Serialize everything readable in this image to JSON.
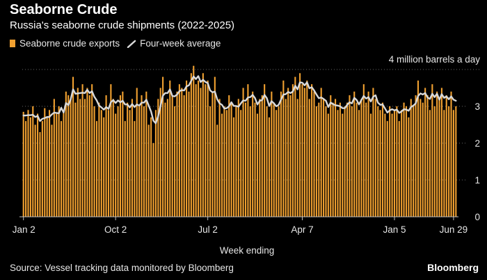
{
  "header": {
    "title": "Seaborne Crude",
    "subtitle": "Russia's seaborne crude shipments (2022-2025)"
  },
  "legend": {
    "bar_label": "Seaborne crude exports",
    "line_label": "Four-week average"
  },
  "footer": {
    "source": "Source: Vessel tracking data monitored by Bloomberg",
    "brand": "Bloomberg"
  },
  "colors": {
    "bar": "#f0a030",
    "bar_dark": "#a86a14",
    "line": "#d9d9d9",
    "grid": "#666666",
    "background": "#000000"
  },
  "chart_data": {
    "type": "bar",
    "title": "Seaborne Crude",
    "subtitle": "Russia's seaborne crude shipments (2022-2025)",
    "xlabel": "Week ending",
    "ylabel": "",
    "unit_label": "4 million barrels a day",
    "ylim": [
      0,
      4
    ],
    "yticks": [
      0,
      1,
      2,
      3
    ],
    "x_ticks": [
      {
        "label": "Jan 2",
        "index": 0
      },
      {
        "label": "Oct 2",
        "index": 39
      },
      {
        "label": "Jul 2",
        "index": 78
      },
      {
        "label": "Apr 7",
        "index": 118
      },
      {
        "label": "Jan 5",
        "index": 157
      },
      {
        "label": "Jun 29",
        "index": 182
      }
    ],
    "grid": true,
    "legend_position": "top-left",
    "series": [
      {
        "name": "Seaborne crude exports",
        "kind": "bar",
        "values": [
          2.85,
          2.6,
          2.9,
          2.7,
          3.0,
          2.5,
          2.8,
          2.3,
          2.6,
          2.95,
          2.7,
          2.9,
          2.5,
          3.2,
          2.8,
          3.0,
          2.6,
          2.9,
          3.4,
          3.3,
          3.2,
          3.8,
          3.1,
          3.5,
          3.2,
          3.6,
          3.2,
          3.5,
          3.3,
          3.6,
          3.0,
          2.6,
          3.1,
          2.9,
          2.7,
          3.3,
          2.9,
          3.6,
          3.2,
          2.8,
          3.0,
          3.3,
          3.4,
          2.6,
          3.1,
          2.9,
          3.2,
          2.6,
          3.5,
          3.0,
          3.3,
          3.0,
          3.4,
          2.5,
          2.7,
          2.0,
          2.9,
          3.2,
          3.5,
          3.8,
          3.1,
          3.2,
          3.7,
          3.3,
          3.0,
          3.4,
          3.6,
          3.5,
          3.3,
          3.7,
          3.4,
          3.9,
          4.1,
          3.6,
          3.7,
          3.5,
          3.9,
          3.6,
          3.7,
          3.0,
          3.4,
          3.8,
          2.5,
          3.2,
          2.8,
          3.0,
          2.9,
          3.3,
          3.1,
          2.7,
          3.0,
          3.2,
          2.9,
          3.5,
          3.1,
          3.6,
          3.0,
          3.4,
          3.1,
          2.8,
          3.2,
          3.3,
          3.6,
          3.0,
          2.7,
          3.4,
          3.1,
          2.9,
          3.0,
          3.4,
          3.7,
          3.2,
          3.5,
          3.3,
          3.6,
          3.8,
          3.2,
          3.9,
          3.6,
          3.5,
          3.7,
          3.2,
          3.6,
          3.4,
          3.0,
          3.1,
          3.5,
          3.2,
          3.0,
          2.8,
          3.3,
          3.1,
          3.2,
          2.9,
          3.1,
          2.8,
          3.0,
          3.1,
          3.3,
          3.0,
          3.4,
          3.1,
          2.9,
          3.2,
          3.6,
          3.1,
          3.4,
          2.8,
          3.5,
          3.2,
          3.0,
          2.9,
          3.1,
          2.8,
          2.6,
          3.0,
          2.8,
          2.9,
          3.0,
          2.6,
          2.9,
          3.1,
          3.0,
          2.7,
          3.2,
          3.0,
          3.3,
          3.7,
          3.2,
          3.1,
          3.5,
          3.3,
          2.9,
          3.6,
          3.0,
          3.4,
          3.2,
          3.5,
          2.9,
          3.3,
          3.0,
          3.4,
          2.9,
          3.0
        ]
      },
      {
        "name": "Four-week average",
        "kind": "line",
        "values": [
          2.75,
          2.75,
          2.76,
          2.76,
          2.77,
          2.71,
          2.74,
          2.6,
          2.66,
          2.68,
          2.71,
          2.71,
          2.78,
          2.83,
          2.82,
          2.81,
          2.96,
          2.83,
          3.09,
          3.03,
          3.19,
          3.46,
          3.34,
          3.35,
          3.36,
          3.37,
          3.36,
          3.45,
          3.36,
          3.41,
          3.26,
          3.16,
          3.02,
          2.97,
          2.91,
          2.98,
          2.93,
          3.11,
          3.17,
          3.09,
          3.16,
          3.11,
          3.15,
          3.05,
          3.05,
          2.97,
          3.06,
          2.98,
          3.05,
          3.02,
          3.1,
          3.1,
          3.18,
          3.02,
          2.86,
          2.61,
          2.54,
          2.73,
          3.01,
          3.29,
          3.36,
          3.36,
          3.46,
          3.28,
          3.27,
          3.32,
          3.41,
          3.44,
          3.43,
          3.54,
          3.57,
          3.69,
          3.81,
          3.74,
          3.82,
          3.66,
          3.72,
          3.66,
          3.63,
          3.43,
          3.38,
          3.4,
          3.19,
          3.08,
          3.04,
          2.94,
          2.95,
          3.0,
          3.11,
          3.01,
          3.01,
          2.99,
          3.08,
          3.16,
          3.15,
          3.24,
          3.25,
          3.31,
          3.22,
          3.05,
          3.15,
          3.17,
          3.31,
          3.22,
          3.01,
          3.14,
          3.08,
          3.0,
          3.04,
          3.18,
          3.32,
          3.33,
          3.39,
          3.36,
          3.4,
          3.56,
          3.46,
          3.65,
          3.64,
          3.57,
          3.65,
          3.49,
          3.52,
          3.43,
          3.32,
          3.22,
          3.24,
          3.2,
          3.15,
          2.98,
          3.1,
          3.06,
          3.03,
          3.02,
          3.0,
          2.95,
          2.95,
          3.04,
          3.11,
          3.08,
          3.23,
          3.17,
          3.05,
          3.17,
          3.28,
          3.21,
          3.25,
          3.13,
          3.26,
          3.3,
          3.1,
          3.04,
          3.05,
          2.94,
          2.83,
          2.89,
          2.92,
          2.89,
          2.91,
          2.82,
          2.86,
          2.92,
          2.91,
          2.88,
          2.98,
          3.02,
          3.08,
          3.28,
          3.35,
          3.32,
          3.36,
          3.24,
          3.2,
          3.34,
          3.25,
          3.34,
          3.18,
          3.33,
          3.23,
          3.27,
          3.19,
          3.27,
          3.18,
          3.15
        ]
      }
    ]
  }
}
